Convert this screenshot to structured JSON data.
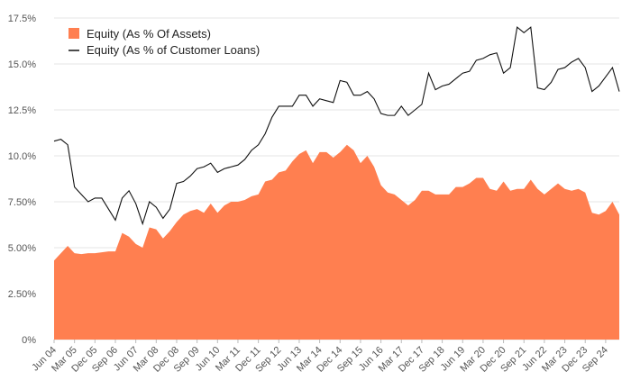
{
  "chart_data": {
    "type": "area",
    "title": "",
    "xlabel": "",
    "ylabel": "",
    "ylim": [
      0,
      17.5
    ],
    "y_ticks": [
      "0%",
      "2.50%",
      "5.00%",
      "7.50%",
      "10.0%",
      "12.5%",
      "15.0%",
      "17.5%"
    ],
    "x_tick_labels": [
      "Jun 04",
      "Mar 05",
      "Dec 05",
      "Sep 06",
      "Jun 07",
      "Mar 08",
      "Dec 08",
      "Sep 09",
      "Jun 10",
      "Mar 11",
      "Dec 11",
      "Sep 12",
      "Jun 13",
      "Mar 14",
      "Dec 14",
      "Sep 15",
      "Jun 16",
      "Mar 17",
      "Dec 17",
      "Sep 18",
      "Jun 19",
      "Mar 20",
      "Dec 20",
      "Sep 21",
      "Jun 22",
      "Mar 23",
      "Dec 23",
      "Sep 24"
    ],
    "grid": true,
    "legend_position": "top-left",
    "x_start": "Jun 04",
    "x_step": "quarter",
    "series": [
      {
        "name": "Equity (As % Of Assets)",
        "kind": "area",
        "color": "#ff7f50",
        "values": [
          4.3,
          4.7,
          5.1,
          4.7,
          4.65,
          4.7,
          4.7,
          4.75,
          4.8,
          4.8,
          5.8,
          5.6,
          5.2,
          5.0,
          6.1,
          6.0,
          5.5,
          5.9,
          6.4,
          6.8,
          7.0,
          7.1,
          6.9,
          7.4,
          6.9,
          7.3,
          7.5,
          7.5,
          7.6,
          7.8,
          7.9,
          8.6,
          8.7,
          9.1,
          9.2,
          9.7,
          10.1,
          10.3,
          9.6,
          10.2,
          10.2,
          9.9,
          10.2,
          10.6,
          10.3,
          9.6,
          10.0,
          9.4,
          8.4,
          8.0,
          7.9,
          7.6,
          7.3,
          7.6,
          8.1,
          8.1,
          7.9,
          7.9,
          7.9,
          8.3,
          8.3,
          8.5,
          8.8,
          8.8,
          8.2,
          8.1,
          8.6,
          8.1,
          8.2,
          8.2,
          8.7,
          8.2,
          7.9,
          8.2,
          8.5,
          8.2,
          8.1,
          8.2,
          8.0,
          6.9,
          6.8,
          7.0,
          7.5,
          6.8
        ]
      },
      {
        "name": "Equity (As % of Customer Loans)",
        "kind": "line",
        "color": "#111111",
        "values": [
          10.8,
          10.9,
          10.6,
          8.3,
          7.9,
          7.5,
          7.7,
          7.7,
          7.1,
          6.5,
          7.7,
          8.1,
          7.4,
          6.3,
          7.5,
          7.2,
          6.6,
          7.1,
          8.5,
          8.6,
          8.9,
          9.3,
          9.4,
          9.6,
          9.1,
          9.3,
          9.4,
          9.5,
          9.8,
          10.3,
          10.6,
          11.2,
          12.1,
          12.7,
          12.7,
          12.7,
          13.3,
          13.3,
          12.7,
          13.1,
          13.0,
          12.9,
          14.1,
          14.0,
          13.3,
          13.3,
          13.5,
          13.1,
          12.3,
          12.2,
          12.2,
          12.7,
          12.2,
          12.5,
          12.8,
          14.5,
          13.6,
          13.8,
          13.9,
          14.2,
          14.5,
          14.6,
          15.2,
          15.3,
          15.5,
          15.6,
          14.5,
          14.8,
          17.0,
          16.7,
          17.0,
          13.7,
          13.6,
          14.0,
          14.7,
          14.8,
          15.1,
          15.3,
          14.8,
          13.5,
          13.8,
          14.3,
          14.8,
          13.5
        ]
      }
    ]
  }
}
